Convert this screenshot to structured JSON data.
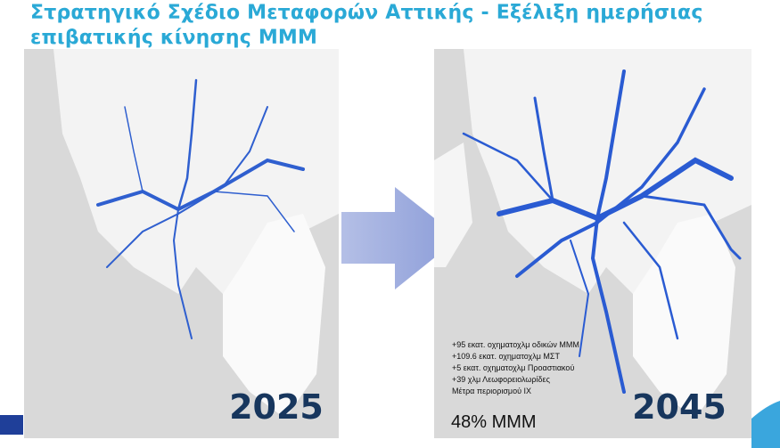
{
  "title": [
    "Στρατηγικό Σχέδιο Μεταφορών Αττικής - Εξέλιξη ημερήσιας",
    "επιβατικής κίνησης ΜΜΜ"
  ],
  "left_map": {
    "year": "2025"
  },
  "right_map": {
    "year": "2045",
    "notes": [
      "+95 εκατ. οχηματοχλμ οδικών ΜΜΜ",
      "+109.6 εκατ. οχηματοχλμ ΜΣΤ",
      "+5 εκατ. οχηματοχλμ Προαστιακού",
      "+39 χλμ Λεωφορειολωρίδες",
      "Μέτρα περιορισμού ΙΧ"
    ],
    "share": "48% ΜΜΜ"
  }
}
